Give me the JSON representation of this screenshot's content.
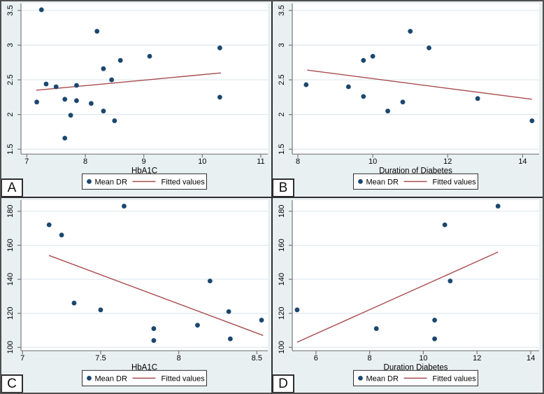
{
  "figure": {
    "panel_bg": "#e9f0f2",
    "plot_bg": "#ffffff",
    "grid_color": "#dde8ed",
    "axis_color": "#787878",
    "dot_color": "#1a476f",
    "fit_color": "#a84c4d",
    "text_color": "#000000",
    "legend": {
      "marker_label": "Mean DR",
      "line_label": "Fitted values"
    }
  },
  "chart_data": [
    {
      "type": "scatter",
      "panel_label": "A",
      "xlabel": "HbA1C",
      "ylabel": "",
      "grid": "horizontal",
      "legend_position": "bottom",
      "legend": [
        "Mean DR",
        "Fitted values"
      ],
      "xticks": [
        7,
        8,
        9,
        10,
        11
      ],
      "yticks": [
        1.5,
        2,
        2.5,
        3,
        3.5
      ],
      "xlim": [
        6.9,
        11.12
      ],
      "ylim": [
        1.43,
        3.6
      ],
      "points": [
        [
          7.25,
          3.51
        ],
        [
          8.2,
          3.2
        ],
        [
          10.3,
          2.96
        ],
        [
          9.1,
          2.84
        ],
        [
          8.6,
          2.78
        ],
        [
          8.31,
          2.66
        ],
        [
          8.45,
          2.5
        ],
        [
          7.33,
          2.44
        ],
        [
          7.85,
          2.42
        ],
        [
          7.5,
          2.4
        ],
        [
          10.3,
          2.25
        ],
        [
          7.65,
          2.22
        ],
        [
          7.85,
          2.2
        ],
        [
          7.17,
          2.18
        ],
        [
          8.1,
          2.16
        ],
        [
          8.31,
          2.05
        ],
        [
          7.75,
          1.99
        ],
        [
          8.5,
          1.91
        ],
        [
          7.65,
          1.66
        ]
      ],
      "fit_line": [
        [
          7.16,
          2.35
        ],
        [
          10.32,
          2.6
        ]
      ]
    },
    {
      "type": "scatter",
      "panel_label": "B",
      "xlabel": "Duration of Diabetes",
      "ylabel": "",
      "grid": "horizontal",
      "legend_position": "bottom",
      "legend": [
        "Mean DR",
        "Fitted values"
      ],
      "xticks": [
        8,
        10,
        12,
        14
      ],
      "yticks": [
        1.5,
        2,
        2.5,
        3,
        3.5
      ],
      "xlim": [
        7.85,
        14.44
      ],
      "ylim": [
        1.43,
        3.6
      ],
      "points": [
        [
          11,
          3.2
        ],
        [
          11.5,
          2.96
        ],
        [
          10,
          2.84
        ],
        [
          9.75,
          2.78
        ],
        [
          8.22,
          2.43
        ],
        [
          9.35,
          2.4
        ],
        [
          9.75,
          2.26
        ],
        [
          12.8,
          2.23
        ],
        [
          10.8,
          2.18
        ],
        [
          10.4,
          2.05
        ],
        [
          14.25,
          1.91
        ]
      ],
      "fit_line": [
        [
          8.25,
          2.64
        ],
        [
          14.25,
          2.22
        ]
      ]
    },
    {
      "type": "scatter",
      "panel_label": "C",
      "xlabel": "HbA1C",
      "ylabel": "",
      "grid": "horizontal",
      "legend_position": "bottom",
      "legend": [
        "Mean DR",
        "Fitted values"
      ],
      "xticks": [
        7,
        7.5,
        8,
        8.5
      ],
      "yticks": [
        100,
        120,
        140,
        160,
        180
      ],
      "xlim": [
        6.99,
        8.57
      ],
      "ylim": [
        98,
        186.5
      ],
      "points": [
        [
          7.65,
          183
        ],
        [
          7.17,
          172
        ],
        [
          7.25,
          166
        ],
        [
          8.2,
          139
        ],
        [
          7.33,
          126
        ],
        [
          7.5,
          122
        ],
        [
          8.32,
          121
        ],
        [
          8.53,
          116
        ],
        [
          8.12,
          113
        ],
        [
          7.84,
          111
        ],
        [
          8.33,
          105
        ],
        [
          7.84,
          104
        ]
      ],
      "fit_line": [
        [
          7.17,
          154
        ],
        [
          8.54,
          107
        ]
      ]
    },
    {
      "type": "scatter",
      "panel_label": "D",
      "xlabel": "Duration Diabetes",
      "ylabel": "",
      "grid": "horizontal",
      "legend_position": "bottom",
      "legend": [
        "Mean DR",
        "Fitted values"
      ],
      "xticks": [
        6,
        8,
        10,
        12,
        14
      ],
      "yticks": [
        100,
        120,
        140,
        160,
        180
      ],
      "xlim": [
        5.12,
        14.31
      ],
      "ylim": [
        98,
        186.5
      ],
      "points": [
        [
          12.78,
          183
        ],
        [
          10.8,
          172
        ],
        [
          11,
          139
        ],
        [
          5.3,
          122
        ],
        [
          10.42,
          116
        ],
        [
          8.25,
          111
        ],
        [
          10.42,
          105
        ]
      ],
      "fit_line": [
        [
          5.3,
          103
        ],
        [
          12.78,
          156
        ]
      ]
    }
  ]
}
